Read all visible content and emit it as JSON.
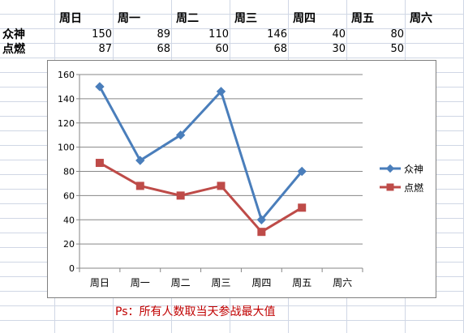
{
  "table": {
    "headers": [
      "周日",
      "周一",
      "周二",
      "周三",
      "周四",
      "周五",
      "周六"
    ],
    "rows": [
      {
        "label": "众神",
        "values": [
          "150",
          "89",
          "110",
          "146",
          "40",
          "80",
          ""
        ]
      },
      {
        "label": "点燃",
        "values": [
          "87",
          "68",
          "60",
          "68",
          "30",
          "50",
          ""
        ]
      }
    ]
  },
  "chart_data": {
    "type": "line",
    "categories": [
      "周日",
      "周一",
      "周二",
      "周三",
      "周四",
      "周五",
      "周六"
    ],
    "ylim": [
      0,
      160
    ],
    "yticks": [
      0,
      20,
      40,
      60,
      80,
      100,
      120,
      140,
      160
    ],
    "grid": true,
    "legend_position": "right",
    "series": [
      {
        "name": "众神",
        "color": "#4a7ebb",
        "marker": "diamond",
        "values": [
          150,
          89,
          110,
          146,
          40,
          80,
          null
        ]
      },
      {
        "name": "点燃",
        "color": "#be4b48",
        "marker": "square",
        "values": [
          87,
          68,
          60,
          68,
          30,
          50,
          null
        ]
      }
    ]
  },
  "note": "Ps：所有人数取当天参战最大值"
}
